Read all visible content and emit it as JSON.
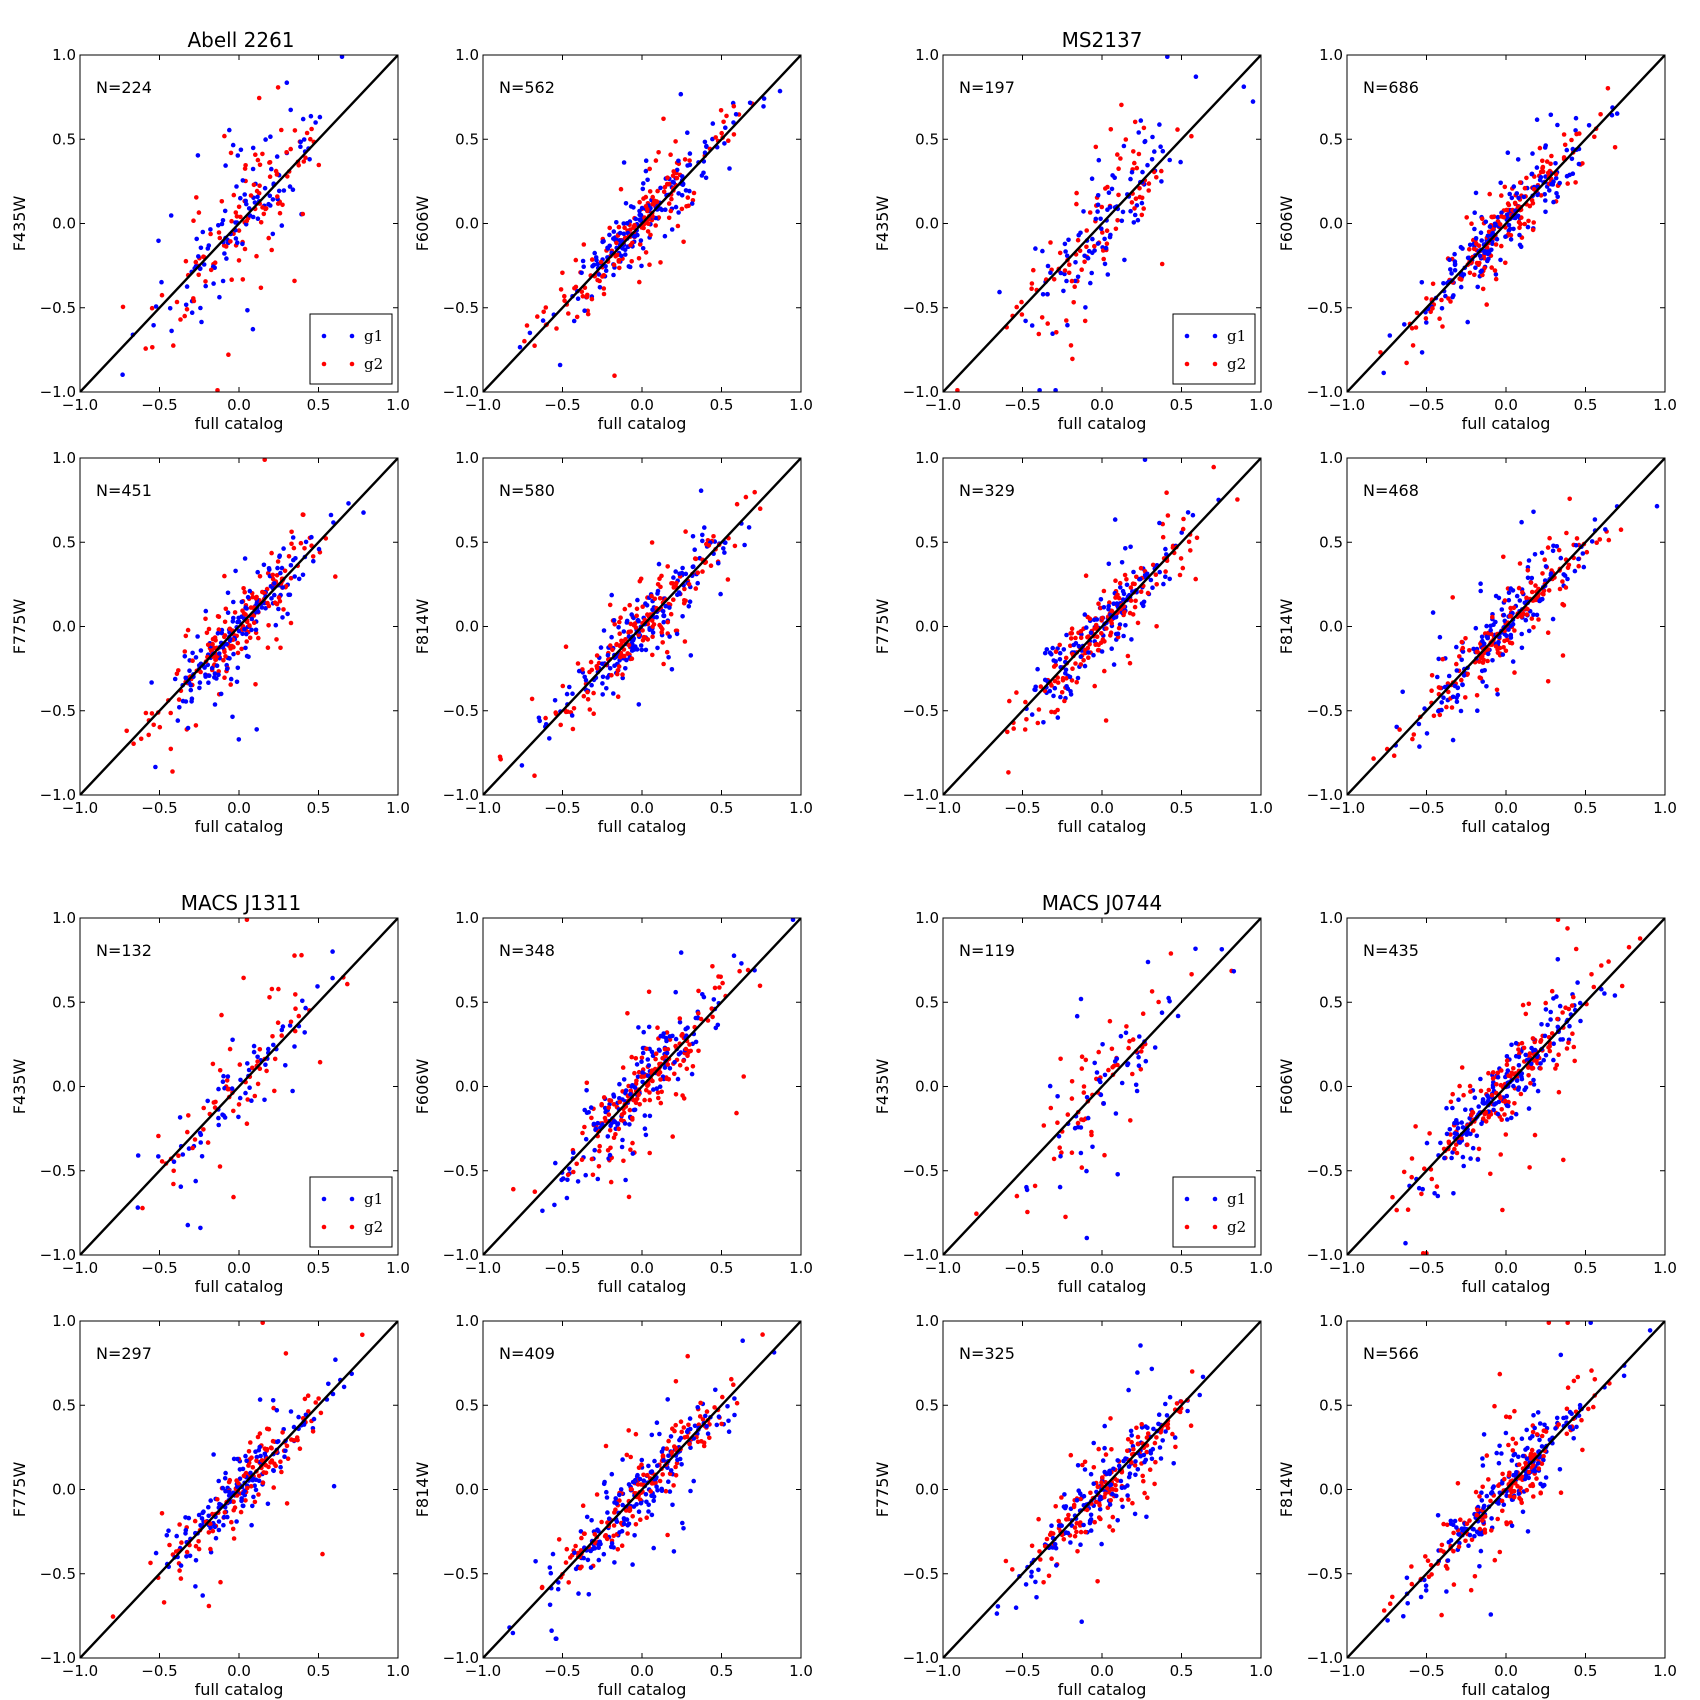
{
  "figure": {
    "axis_range": [
      -1.0,
      1.0
    ],
    "tick_values": [
      -1.0,
      -0.5,
      0.0,
      0.5,
      1.0
    ],
    "tick_labels": [
      "−1.0",
      "−0.5",
      "0.0",
      "0.5",
      "1.0"
    ],
    "xlabel": "full catalog",
    "legend_labels": [
      "g1",
      "g2"
    ],
    "colors": {
      "g1": "#0000ff",
      "g2": "#ff0000",
      "line": "#000000"
    }
  },
  "clusters": [
    {
      "name": "Abell 2261"
    },
    {
      "name": "MS2137"
    },
    {
      "name": "MACS J1311"
    },
    {
      "name": "MACS J0744"
    }
  ],
  "chart_data": [
    {
      "type": "scatter",
      "cluster": "Abell 2261",
      "ylabel": "F435W",
      "n_label": "N=224",
      "N": 224,
      "legend": true,
      "seed": 11,
      "scatter_sigma": 0.16,
      "x_sigma": 0.28
    },
    {
      "type": "scatter",
      "cluster": "Abell 2261",
      "ylabel": "F606W",
      "n_label": "N=562",
      "N": 562,
      "legend": false,
      "seed": 12,
      "scatter_sigma": 0.09,
      "x_sigma": 0.28
    },
    {
      "type": "scatter",
      "cluster": "MS2137",
      "ylabel": "F435W",
      "n_label": "N=197",
      "N": 197,
      "legend": true,
      "seed": 13,
      "scatter_sigma": 0.15,
      "x_sigma": 0.26
    },
    {
      "type": "scatter",
      "cluster": "MS2137",
      "ylabel": "F606W",
      "n_label": "N=686",
      "N": 686,
      "legend": false,
      "seed": 14,
      "scatter_sigma": 0.09,
      "x_sigma": 0.28
    },
    {
      "type": "scatter",
      "cluster": "Abell 2261",
      "ylabel": "F775W",
      "n_label": "N=451",
      "N": 451,
      "legend": false,
      "seed": 21,
      "scatter_sigma": 0.11,
      "x_sigma": 0.26
    },
    {
      "type": "scatter",
      "cluster": "Abell 2261",
      "ylabel": "F814W",
      "n_label": "N=580",
      "N": 580,
      "legend": false,
      "seed": 22,
      "scatter_sigma": 0.1,
      "x_sigma": 0.28
    },
    {
      "type": "scatter",
      "cluster": "MS2137",
      "ylabel": "F775W",
      "n_label": "N=329",
      "N": 329,
      "legend": false,
      "seed": 23,
      "scatter_sigma": 0.1,
      "x_sigma": 0.26
    },
    {
      "type": "scatter",
      "cluster": "MS2137",
      "ylabel": "F814W",
      "n_label": "N=468",
      "N": 468,
      "legend": false,
      "seed": 24,
      "scatter_sigma": 0.1,
      "x_sigma": 0.28
    },
    {
      "type": "scatter",
      "cluster": "MACS J1311",
      "ylabel": "F435W",
      "n_label": "N=132",
      "N": 132,
      "legend": true,
      "seed": 31,
      "scatter_sigma": 0.16,
      "x_sigma": 0.28
    },
    {
      "type": "scatter",
      "cluster": "MACS J1311",
      "ylabel": "F606W",
      "n_label": "N=348",
      "N": 348,
      "legend": false,
      "seed": 32,
      "scatter_sigma": 0.11,
      "x_sigma": 0.27
    },
    {
      "type": "scatter",
      "cluster": "MACS J0744",
      "ylabel": "F435W",
      "n_label": "N=119",
      "N": 119,
      "legend": true,
      "seed": 33,
      "scatter_sigma": 0.16,
      "x_sigma": 0.25
    },
    {
      "type": "scatter",
      "cluster": "MACS J0744",
      "ylabel": "F606W",
      "n_label": "N=435",
      "N": 435,
      "legend": false,
      "seed": 34,
      "scatter_sigma": 0.1,
      "x_sigma": 0.28
    },
    {
      "type": "scatter",
      "cluster": "MACS J1311",
      "ylabel": "F775W",
      "n_label": "N=297",
      "N": 297,
      "legend": false,
      "seed": 41,
      "scatter_sigma": 0.1,
      "x_sigma": 0.26
    },
    {
      "type": "scatter",
      "cluster": "MACS J1311",
      "ylabel": "F814W",
      "n_label": "N=409",
      "N": 409,
      "legend": false,
      "seed": 42,
      "scatter_sigma": 0.1,
      "x_sigma": 0.28
    },
    {
      "type": "scatter",
      "cluster": "MACS J0744",
      "ylabel": "F775W",
      "n_label": "N=325",
      "N": 325,
      "legend": false,
      "seed": 43,
      "scatter_sigma": 0.1,
      "x_sigma": 0.26
    },
    {
      "type": "scatter",
      "cluster": "MACS J0744",
      "ylabel": "F814W",
      "n_label": "N=566",
      "N": 566,
      "legend": false,
      "seed": 44,
      "scatter_sigma": 0.1,
      "x_sigma": 0.29
    }
  ]
}
